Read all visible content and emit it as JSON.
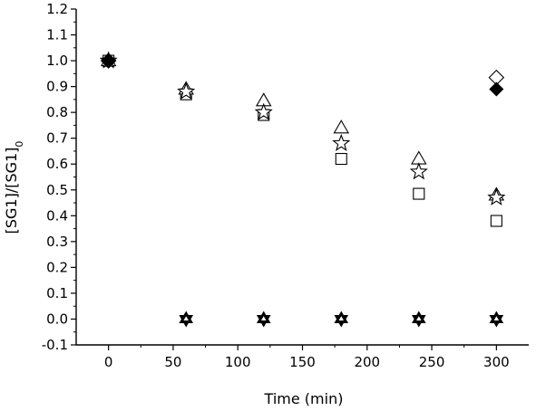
{
  "chart_data": {
    "type": "scatter",
    "xlabel": "Time (min)",
    "ylabel": "[SG1]/[SG1]",
    "ylabel_subscript": "0",
    "xlim": [
      -25,
      325
    ],
    "ylim": [
      -0.1,
      1.2
    ],
    "xticks": [
      0,
      50,
      100,
      150,
      200,
      250,
      300
    ],
    "xtick_labels": [
      "0",
      "50",
      "100",
      "150",
      "200",
      "250",
      "300"
    ],
    "yticks": [
      -0.1,
      0.0,
      0.1,
      0.2,
      0.3,
      0.4,
      0.5,
      0.6,
      0.7,
      0.8,
      0.9,
      1.0,
      1.1,
      1.2
    ],
    "ytick_labels": [
      "-0.1",
      "0.0",
      "0.1",
      "0.2",
      "0.3",
      "0.4",
      "0.5",
      "0.6",
      "0.7",
      "0.8",
      "0.9",
      "1.0",
      "1.1",
      "1.2"
    ],
    "grid": false,
    "series": [
      {
        "marker": "square-open",
        "x": [
          0,
          60,
          120,
          180,
          240,
          300
        ],
        "y": [
          1.0,
          0.87,
          0.79,
          0.62,
          0.485,
          0.38
        ]
      },
      {
        "marker": "triangle-up-open",
        "x": [
          0,
          60,
          120,
          180,
          240,
          300
        ],
        "y": [
          1.0,
          0.89,
          0.845,
          0.74,
          0.62,
          0.48
        ]
      },
      {
        "marker": "star-open",
        "x": [
          0,
          60,
          120,
          180,
          240,
          300
        ],
        "y": [
          1.0,
          0.88,
          0.8,
          0.68,
          0.57,
          0.47
        ]
      },
      {
        "marker": "star-of-david-filled",
        "x": [
          60,
          120,
          180,
          240,
          300
        ],
        "y": [
          0.0,
          0.0,
          0.0,
          0.0,
          0.0
        ]
      },
      {
        "marker": "diamond-open",
        "x": [
          0,
          300
        ],
        "y": [
          1.0,
          0.935
        ]
      },
      {
        "marker": "diamond-filled",
        "x": [
          0,
          300
        ],
        "y": [
          1.0,
          0.89
        ]
      }
    ]
  }
}
